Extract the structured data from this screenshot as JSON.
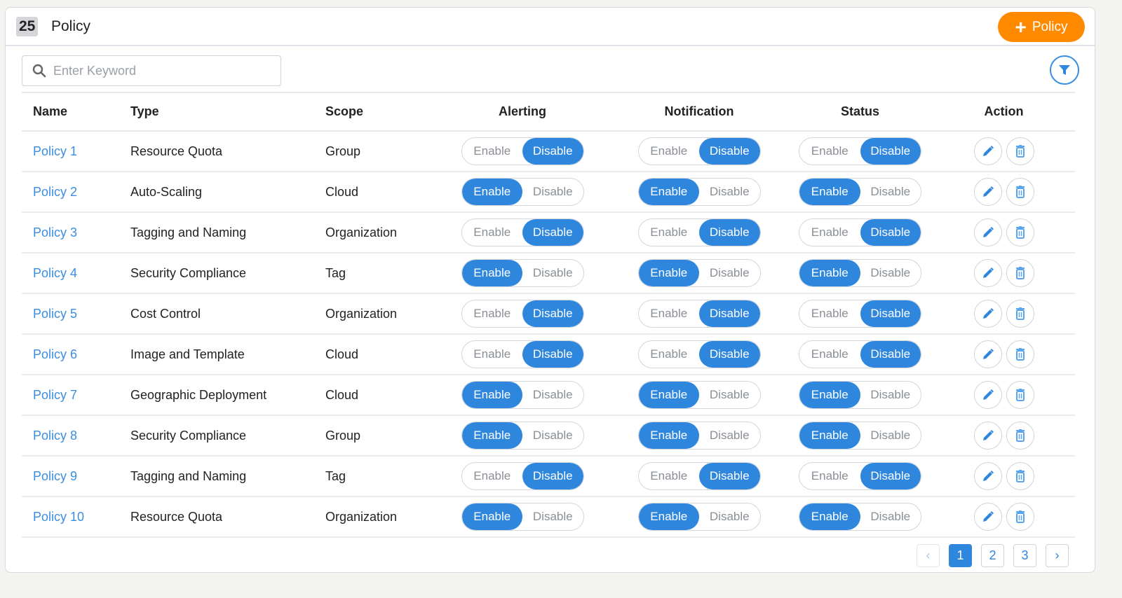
{
  "header": {
    "count": "25",
    "title": "Policy",
    "add_button": "Policy"
  },
  "search": {
    "placeholder": "Enter Keyword",
    "value": ""
  },
  "colors": {
    "accent": "#2f86dd",
    "add_button": "#ff8a00"
  },
  "table": {
    "columns": [
      "Name",
      "Type",
      "Scope",
      "Alerting",
      "Notification",
      "Status",
      "Action"
    ],
    "toggle_labels": {
      "enable": "Enable",
      "disable": "Disable"
    },
    "rows": [
      {
        "name": "Policy 1",
        "type": "Resource Quota",
        "scope": "Group",
        "alerting": "Disable",
        "notification": "Disable",
        "status": "Disable"
      },
      {
        "name": "Policy 2",
        "type": "Auto-Scaling",
        "scope": "Cloud",
        "alerting": "Enable",
        "notification": "Enable",
        "status": "Enable"
      },
      {
        "name": "Policy 3",
        "type": "Tagging and Naming",
        "scope": "Organization",
        "alerting": "Disable",
        "notification": "Disable",
        "status": "Disable"
      },
      {
        "name": "Policy 4",
        "type": "Security Compliance",
        "scope": "Tag",
        "alerting": "Enable",
        "notification": "Enable",
        "status": "Enable"
      },
      {
        "name": "Policy 5",
        "type": "Cost Control",
        "scope": "Organization",
        "alerting": "Disable",
        "notification": "Disable",
        "status": "Disable"
      },
      {
        "name": "Policy 6",
        "type": "Image and Template",
        "scope": "Cloud",
        "alerting": "Disable",
        "notification": "Disable",
        "status": "Disable"
      },
      {
        "name": "Policy 7",
        "type": "Geographic Deployment",
        "scope": "Cloud",
        "alerting": "Enable",
        "notification": "Enable",
        "status": "Enable"
      },
      {
        "name": "Policy 8",
        "type": "Security Compliance",
        "scope": "Group",
        "alerting": "Enable",
        "notification": "Enable",
        "status": "Enable"
      },
      {
        "name": "Policy 9",
        "type": "Tagging and Naming",
        "scope": "Tag",
        "alerting": "Disable",
        "notification": "Disable",
        "status": "Disable"
      },
      {
        "name": "Policy 10",
        "type": "Resource Quota",
        "scope": "Organization",
        "alerting": "Enable",
        "notification": "Enable",
        "status": "Enable"
      }
    ]
  },
  "pagination": {
    "pages": [
      "1",
      "2",
      "3"
    ],
    "current": "1",
    "prev": "‹",
    "next": "›"
  }
}
